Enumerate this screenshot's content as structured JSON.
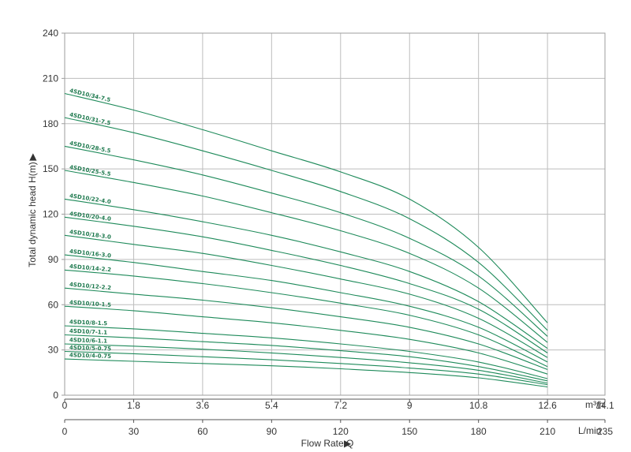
{
  "chart_data": {
    "type": "line",
    "ylabel": "Total dynamic head H(m)",
    "y_ticks": [
      "0",
      "30",
      "60",
      "90",
      "120",
      "150",
      "180",
      "210",
      "240"
    ],
    "ylim": [
      0,
      240
    ],
    "x_m3h_unit": "m³/h",
    "x_m3h_ticks": [
      "0",
      "1.8",
      "3.6",
      "5.4",
      "7.2",
      "9",
      "10.8",
      "12.6",
      "14.1"
    ],
    "x_m3h_values": [
      0,
      1.8,
      3.6,
      5.4,
      7.2,
      9,
      10.8,
      12.6,
      14.1
    ],
    "x_lmin_unit": "L/min",
    "x_lmin_ticks": [
      "0",
      "30",
      "60",
      "90",
      "120",
      "150",
      "180",
      "210",
      "235"
    ],
    "xlabel": "Flow Rate Q",
    "xlim": [
      0,
      14.1
    ],
    "grid": true,
    "series": [
      {
        "name": "4SD10/34-7.5",
        "x": [
          0,
          1.8,
          3.6,
          5.4,
          7.2,
          9,
          10.8,
          12.6
        ],
        "values": [
          200,
          189,
          176,
          162,
          148,
          130,
          98,
          48
        ]
      },
      {
        "name": "4SD10/31-7.5",
        "x": [
          0,
          1.8,
          3.6,
          5.4,
          7.2,
          9,
          10.8,
          12.6
        ],
        "values": [
          184,
          174,
          162,
          149,
          135,
          117,
          88,
          43
        ]
      },
      {
        "name": "4SD10/28-5.5",
        "x": [
          0,
          1.8,
          3.6,
          5.4,
          7.2,
          9,
          10.8,
          12.6
        ],
        "values": [
          165,
          156,
          146,
          134,
          121,
          104,
          79,
          39
        ]
      },
      {
        "name": "4SD10/25-5.5",
        "x": [
          0,
          1.8,
          3.6,
          5.4,
          7.2,
          9,
          10.8,
          12.6
        ],
        "values": [
          149,
          141,
          132,
          121,
          109,
          94,
          71,
          35
        ]
      },
      {
        "name": "4SD10/22-4.0",
        "x": [
          0,
          1.8,
          3.6,
          5.4,
          7.2,
          9,
          10.8,
          12.6
        ],
        "values": [
          130,
          123,
          115,
          106,
          95,
          82,
          62,
          31
        ]
      },
      {
        "name": "4SD10/20-4.0",
        "x": [
          0,
          1.8,
          3.6,
          5.4,
          7.2,
          9,
          10.8,
          12.6
        ],
        "values": [
          118,
          112,
          105,
          96,
          86,
          74,
          57,
          28
        ]
      },
      {
        "name": "4SD10/18-3.0",
        "x": [
          0,
          1.8,
          3.6,
          5.4,
          7.2,
          9,
          10.8,
          12.6
        ],
        "values": [
          106,
          100,
          94,
          86,
          77,
          67,
          51,
          25
        ]
      },
      {
        "name": "4SD10/16-3.0",
        "x": [
          0,
          1.8,
          3.6,
          5.4,
          7.2,
          9,
          10.8,
          12.6
        ],
        "values": [
          93,
          88,
          82,
          76,
          68,
          59,
          45,
          22
        ]
      },
      {
        "name": "4SD10/14-2.2",
        "x": [
          0,
          1.8,
          3.6,
          5.4,
          7.2,
          9,
          10.8,
          12.6
        ],
        "values": [
          83,
          79,
          74,
          68,
          61,
          53,
          40,
          19
        ]
      },
      {
        "name": "4SD10/12-2.2",
        "x": [
          0,
          1.8,
          3.6,
          5.4,
          7.2,
          9,
          10.8,
          12.6
        ],
        "values": [
          71,
          67,
          63,
          58,
          52,
          45,
          34,
          17
        ]
      },
      {
        "name": "4SD10/10-1.5",
        "x": [
          0,
          1.8,
          3.6,
          5.4,
          7.2,
          9,
          10.8,
          12.6
        ],
        "values": [
          59,
          56,
          52,
          48,
          43,
          37,
          28,
          14
        ]
      },
      {
        "name": "4SD10/8-1.5",
        "x": [
          0,
          1.8,
          3.6,
          5.4,
          7.2,
          9,
          10.8,
          12.6
        ],
        "values": [
          46,
          44,
          41,
          38,
          34,
          29,
          22,
          11
        ]
      },
      {
        "name": "4SD10/7-1.1",
        "x": [
          0,
          1.8,
          3.6,
          5.4,
          7.2,
          9,
          10.8,
          12.6
        ],
        "values": [
          40,
          38,
          35.5,
          33,
          29.5,
          25.5,
          19,
          9.5
        ]
      },
      {
        "name": "4SD10/6-1.1",
        "x": [
          0,
          1.8,
          3.6,
          5.4,
          7.2,
          9,
          10.8,
          12.6
        ],
        "values": [
          34,
          32.5,
          30.5,
          28,
          25,
          21.5,
          16.5,
          8
        ]
      },
      {
        "name": "4SD10/5-0.75",
        "x": [
          0,
          1.8,
          3.6,
          5.4,
          7.2,
          9,
          10.8,
          12.6
        ],
        "values": [
          29,
          27.5,
          25.5,
          23.5,
          21,
          18,
          14,
          7
        ]
      },
      {
        "name": "4SD10/4-0.75",
        "x": [
          0,
          1.8,
          3.6,
          5.4,
          7.2,
          9,
          10.8,
          12.6
        ],
        "values": [
          24,
          22.5,
          21,
          19.5,
          17.5,
          15,
          11.5,
          5.5
        ]
      }
    ],
    "colors": {
      "curve": "#1e8a5a",
      "label": "#1f7a4f",
      "grid": "#bdbdbd",
      "text": "#333333"
    }
  }
}
